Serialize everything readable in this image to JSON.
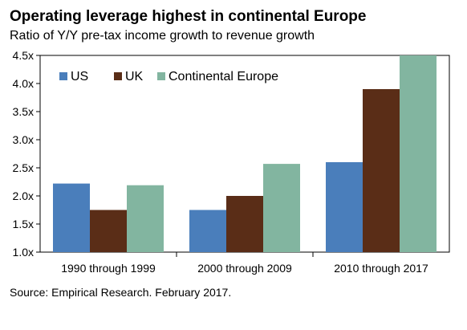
{
  "title": "Operating leverage highest in continental Europe",
  "subtitle": "Ratio of Y/Y pre-tax income growth to revenue growth",
  "source": "Source: Empirical Research. February 2017.",
  "chart_data": {
    "type": "bar",
    "categories": [
      "1990 through 1999",
      "2000 through 2009",
      "2010 through 2017"
    ],
    "series": [
      {
        "name": "US",
        "color": "#4a7ebb",
        "values": [
          2.22,
          1.75,
          2.6
        ]
      },
      {
        "name": "UK",
        "color": "#5a2d17",
        "values": [
          1.75,
          2.0,
          3.9
        ]
      },
      {
        "name": "Continental Europe",
        "color": "#82b5a0",
        "values": [
          2.19,
          2.57,
          4.5
        ]
      }
    ],
    "ylim": [
      1.0,
      4.5
    ],
    "yticks": [
      "1.0x",
      "1.5x",
      "2.0x",
      "2.5x",
      "3.0x",
      "3.5x",
      "4.0x",
      "4.5x"
    ],
    "grid": false,
    "legend_position": "top-left"
  }
}
